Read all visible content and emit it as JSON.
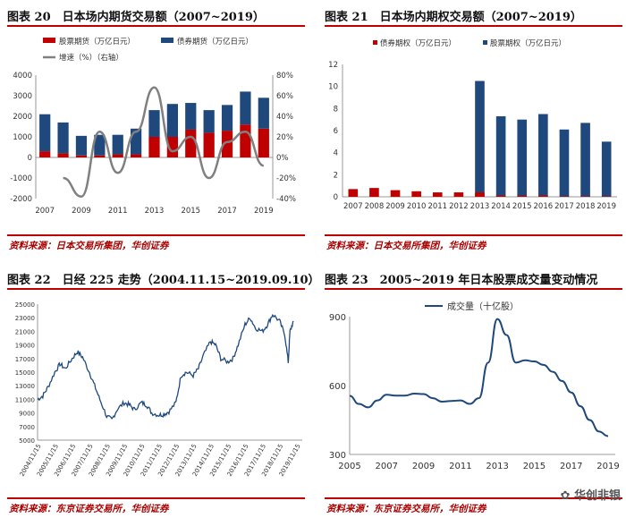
{
  "fig20": {
    "title": "图表 20　日本场内期货交易额（2007~2019）",
    "source": "资料来源：日本交易所集团，华创证券",
    "chart_data": {
      "type": "bar+line",
      "categories": [
        "2007",
        "2008",
        "2009",
        "2010",
        "2011",
        "2012",
        "2013",
        "2014",
        "2015",
        "2016",
        "2017",
        "2018",
        "2019"
      ],
      "series": [
        {
          "name": "股票期货（万亿日元）",
          "color": "#c00000",
          "values": [
            300,
            200,
            100,
            100,
            150,
            150,
            1000,
            1000,
            1350,
            1200,
            1300,
            1600,
            1400
          ]
        },
        {
          "name": "债券期货（万亿日元）",
          "color": "#1f497d",
          "values": [
            1800,
            1500,
            950,
            1000,
            950,
            1250,
            1300,
            1600,
            1300,
            1100,
            1250,
            1600,
            1500
          ]
        },
        {
          "name": "增速（%）（右轴）",
          "color": "#808080",
          "axis": "right",
          "values": [
            null,
            -20,
            -38,
            25,
            -15,
            25,
            68,
            6,
            20,
            -20,
            15,
            25,
            -8
          ]
        }
      ],
      "ylim": [
        -2000,
        4000
      ],
      "yticks": [
        "4000",
        "3000",
        "2000",
        "1000",
        "0",
        "-1000",
        "-2000"
      ],
      "y2lim": [
        -40,
        80
      ],
      "y2ticks": [
        "80%",
        "60%",
        "40%",
        "20%",
        "0%",
        "-20%",
        "-40%"
      ],
      "xticks": [
        "2007",
        "2009",
        "2011",
        "2013",
        "2015",
        "2017",
        "2019"
      ]
    }
  },
  "fig21": {
    "title": "图表 21　日本场内期权交易额（2007~2019）",
    "source": "资料来源：日本交易所集团，华创证券",
    "chart_data": {
      "type": "bar",
      "categories": [
        "2007",
        "2008",
        "2009",
        "2010",
        "2011",
        "2012",
        "2013",
        "2014",
        "2015",
        "2016",
        "2017",
        "2018",
        "2019"
      ],
      "series": [
        {
          "name": "债券期权（万亿日元）",
          "color": "#c00000",
          "values": [
            0.7,
            0.8,
            0.6,
            0.5,
            0.4,
            0.4,
            0.4,
            0.1,
            0.1,
            0.1,
            0.05,
            0.05,
            0.05
          ]
        },
        {
          "name": "股票期权（万亿日元）",
          "color": "#1f497d",
          "values": [
            0,
            0,
            0,
            0,
            0,
            0,
            10.5,
            7.3,
            7.0,
            7.5,
            6.1,
            6.7,
            5.0
          ]
        }
      ],
      "ylim": [
        0,
        12
      ],
      "yticks": [
        "12",
        "10",
        "8",
        "6",
        "4",
        "2",
        "0"
      ]
    }
  },
  "fig22": {
    "title": "图表 22　日经 225 走势（2004.11.15~2019.09.10）",
    "source": "资料来源：东京证券交易所，华创证券",
    "chart_data": {
      "type": "line",
      "color": "#1f497d",
      "x": [
        0,
        0.3,
        0.6,
        1.0,
        1.3,
        1.6,
        2.0,
        2.3,
        2.6,
        3.0,
        3.3,
        3.6,
        4.0,
        4.3,
        4.6,
        5.0,
        5.3,
        5.6,
        6.0,
        6.3,
        6.6,
        7.0,
        7.3,
        7.6,
        8.0,
        8.3,
        8.6,
        9.0,
        9.3,
        9.6,
        10.0,
        10.3,
        10.6,
        11.0,
        11.3,
        11.6,
        12.0,
        12.3,
        12.6,
        13.0,
        13.3,
        13.6,
        14.0,
        14.3,
        14.5,
        14.6,
        14.8
      ],
      "y": [
        11000,
        11500,
        12800,
        15000,
        16200,
        15500,
        17000,
        18000,
        17200,
        15000,
        13000,
        11000,
        8500,
        8000,
        9500,
        10500,
        10200,
        9500,
        10500,
        10200,
        9000,
        8700,
        8800,
        9200,
        10500,
        14500,
        15000,
        14500,
        15500,
        17500,
        19500,
        19000,
        17000,
        16500,
        17000,
        19000,
        22000,
        23000,
        21500,
        21000,
        22000,
        23500,
        22500,
        20500,
        16500,
        21000,
        22500
      ],
      "xticks": [
        "2004/11/15",
        "2005/11/15",
        "2006/11/15",
        "2007/11/15",
        "2008/11/15",
        "2009/11/15",
        "2010/11/15",
        "2011/11/15",
        "2012/11/15",
        "2013/11/15",
        "2014/11/15",
        "2015/11/15",
        "2016/11/15",
        "2017/11/15",
        "2018/11/15",
        "2019/11/15"
      ],
      "yticks": [
        "25000",
        "23000",
        "21000",
        "19000",
        "17000",
        "15000",
        "13000",
        "11000",
        "9000",
        "7000",
        "5000"
      ],
      "ylim": [
        5000,
        25000
      ]
    }
  },
  "fig23": {
    "title": "图表 23　2005~2019 年日本股票成交量变动情况",
    "source": "资料来源：东京证券交易所，华创证券",
    "watermark": "华创非银",
    "chart_data": {
      "type": "line",
      "legend": "成交量（十亿股）",
      "color": "#1f497d",
      "x": [
        2005,
        2005.5,
        2006,
        2006.5,
        2007,
        2007.5,
        2008,
        2008.5,
        2009,
        2009.5,
        2010,
        2010.5,
        2011,
        2011.5,
        2012,
        2012.5,
        2013,
        2013.5,
        2014,
        2014.5,
        2015,
        2015.5,
        2016,
        2016.5,
        2017,
        2017.5,
        2018,
        2018.5,
        2019
      ],
      "y": [
        555,
        520,
        505,
        535,
        560,
        556,
        556,
        565,
        563,
        545,
        530,
        533,
        535,
        520,
        545,
        700,
        890,
        820,
        700,
        710,
        705,
        690,
        660,
        620,
        570,
        510,
        450,
        400,
        380
      ],
      "xticks": [
        "2005",
        "2007",
        "2009",
        "2011",
        "2013",
        "2015",
        "2017",
        "2019"
      ],
      "yticks": [
        "900",
        "600",
        "300"
      ],
      "ylim": [
        300,
        900
      ]
    }
  }
}
